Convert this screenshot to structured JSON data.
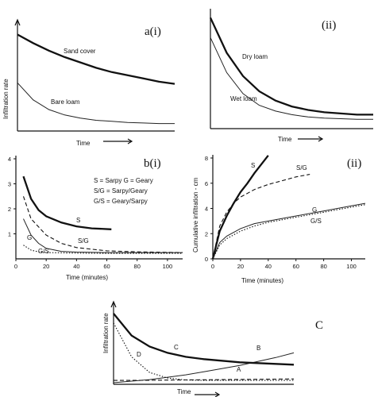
{
  "figure": {
    "a_i": {
      "tag": "a(i)",
      "ylabel": "Infiltration rate",
      "xlabel": "Time",
      "curves": [
        {
          "id": "sand",
          "label": "Sand cover",
          "style": "thick"
        },
        {
          "id": "bare",
          "label": "Bare loam",
          "style": "thin"
        }
      ]
    },
    "a_ii": {
      "tag": "(ii)",
      "xlabel": "Time",
      "curves": [
        {
          "id": "dry",
          "label": "Dry loam",
          "style": "thick"
        },
        {
          "id": "wet",
          "label": "Wet loam",
          "style": "thin"
        }
      ]
    },
    "b_i": {
      "tag": "b(i)",
      "xlabel": "Time (minutes)",
      "legend": [
        "S = Sarpy   G = Geary",
        "S/G = Sarpy/Geary",
        "G/S = Geary/Sarpy"
      ],
      "curve_labels": {
        "S": "S",
        "SG": "S/G",
        "G": "G",
        "GS": "G/S"
      }
    },
    "b_ii": {
      "tag": "(ii)",
      "xlabel": "Time (minutes)",
      "ylabel": "Cumulative infiltration - cm",
      "curve_labels": {
        "S": "S",
        "SG": "S/G",
        "G": "G",
        "GS": "G/S"
      }
    },
    "c": {
      "tag": "C",
      "ylabel": "Infiltration rate",
      "xlabel": "Time",
      "curve_labels": {
        "A": "A",
        "B": "B",
        "C": "C",
        "D": "D"
      }
    }
  },
  "chart_data": [
    {
      "panel": "a(i)",
      "type": "line",
      "xlabel": "Time",
      "ylabel": "Infiltration rate",
      "x": [
        0,
        1,
        2,
        3,
        4,
        5,
        6,
        7,
        8,
        9,
        10
      ],
      "series": [
        {
          "name": "Sand cover",
          "values": [
            0.9,
            0.82,
            0.75,
            0.69,
            0.64,
            0.59,
            0.55,
            0.52,
            0.49,
            0.46,
            0.44
          ]
        },
        {
          "name": "Bare loam",
          "values": [
            0.45,
            0.29,
            0.2,
            0.15,
            0.12,
            0.1,
            0.09,
            0.08,
            0.075,
            0.07,
            0.07
          ]
        }
      ]
    },
    {
      "panel": "(ii)",
      "type": "line",
      "xlabel": "Time",
      "x": [
        0,
        1,
        2,
        3,
        4,
        5,
        6,
        7,
        8,
        9,
        10
      ],
      "series": [
        {
          "name": "Dry loam",
          "values": [
            0.95,
            0.65,
            0.45,
            0.32,
            0.24,
            0.19,
            0.16,
            0.14,
            0.13,
            0.12,
            0.12
          ]
        },
        {
          "name": "Wet loam",
          "values": [
            0.78,
            0.48,
            0.3,
            0.2,
            0.15,
            0.12,
            0.1,
            0.09,
            0.085,
            0.08,
            0.08
          ]
        }
      ]
    },
    {
      "panel": "b(i)",
      "type": "line",
      "xlabel": "Time (minutes)",
      "xlim": [
        0,
        110
      ],
      "ylim": [
        0,
        4
      ],
      "x_ticks": [
        0,
        20,
        40,
        60,
        80,
        100
      ],
      "y_ticks": [
        1,
        2,
        3,
        4
      ],
      "series": [
        {
          "name": "S",
          "x": [
            5,
            10,
            15,
            20,
            30,
            40,
            50,
            63
          ],
          "values": [
            3.3,
            2.4,
            1.95,
            1.7,
            1.45,
            1.3,
            1.22,
            1.18
          ]
        },
        {
          "name": "S/G",
          "x": [
            5,
            10,
            20,
            30,
            40,
            60,
            80,
            110
          ],
          "values": [
            2.5,
            1.6,
            0.95,
            0.62,
            0.45,
            0.32,
            0.28,
            0.25
          ]
        },
        {
          "name": "G",
          "x": [
            5,
            10,
            15,
            20,
            30,
            40,
            60,
            80,
            110
          ],
          "values": [
            1.6,
            0.95,
            0.62,
            0.42,
            0.3,
            0.27,
            0.25,
            0.25,
            0.25
          ]
        },
        {
          "name": "G/S",
          "x": [
            5,
            10,
            15,
            20,
            30,
            40,
            60,
            80,
            110
          ],
          "values": [
            0.55,
            0.35,
            0.28,
            0.25,
            0.24,
            0.23,
            0.22,
            0.22,
            0.22
          ]
        }
      ]
    },
    {
      "panel": "(ii)",
      "type": "line",
      "xlabel": "Time (minutes)",
      "ylabel": "Cumulative infiltration - cm",
      "xlim": [
        0,
        110
      ],
      "ylim": [
        0,
        8
      ],
      "x_ticks": [
        0,
        20,
        40,
        60,
        80,
        100
      ],
      "y_ticks": [
        0,
        2,
        4,
        6,
        8
      ],
      "series": [
        {
          "name": "S",
          "x": [
            0,
            5,
            10,
            15,
            20,
            25,
            30,
            35,
            40
          ],
          "values": [
            0,
            2.2,
            3.4,
            4.4,
            5.3,
            6.0,
            6.8,
            7.5,
            8.2
          ]
        },
        {
          "name": "S/G",
          "x": [
            0,
            5,
            10,
            15,
            20,
            30,
            40,
            50,
            60,
            70
          ],
          "values": [
            0,
            2.6,
            3.7,
            4.4,
            4.9,
            5.5,
            5.9,
            6.2,
            6.5,
            6.7
          ]
        },
        {
          "name": "G",
          "x": [
            0,
            5,
            10,
            20,
            30,
            40,
            60,
            80,
            100,
            110
          ],
          "values": [
            0,
            1.3,
            1.8,
            2.4,
            2.8,
            3.0,
            3.4,
            3.8,
            4.2,
            4.4
          ]
        },
        {
          "name": "G/S",
          "x": [
            0,
            5,
            10,
            20,
            30,
            40,
            60,
            80,
            100,
            110
          ],
          "values": [
            0,
            1.1,
            1.6,
            2.2,
            2.6,
            2.9,
            3.3,
            3.7,
            4.1,
            4.3
          ]
        }
      ]
    },
    {
      "panel": "C",
      "type": "line",
      "xlabel": "Time",
      "ylabel": "Infiltration rate",
      "x": [
        0,
        1,
        2,
        3,
        4,
        5,
        6,
        7,
        8,
        9,
        10
      ],
      "series": [
        {
          "name": "A",
          "values": [
            0.05,
            0.05,
            0.052,
            0.054,
            0.056,
            0.058,
            0.06,
            0.062,
            0.064,
            0.066,
            0.068
          ]
        },
        {
          "name": "B",
          "values": [
            0.02,
            0.04,
            0.06,
            0.09,
            0.12,
            0.16,
            0.2,
            0.24,
            0.29,
            0.34,
            0.4
          ]
        },
        {
          "name": "C",
          "values": [
            0.9,
            0.62,
            0.48,
            0.4,
            0.35,
            0.32,
            0.3,
            0.28,
            0.27,
            0.26,
            0.25
          ]
        },
        {
          "name": "D",
          "values": [
            0.78,
            0.35,
            0.15,
            0.08,
            0.055,
            0.05,
            0.05,
            0.05,
            0.05,
            0.05,
            0.05
          ]
        }
      ]
    }
  ]
}
